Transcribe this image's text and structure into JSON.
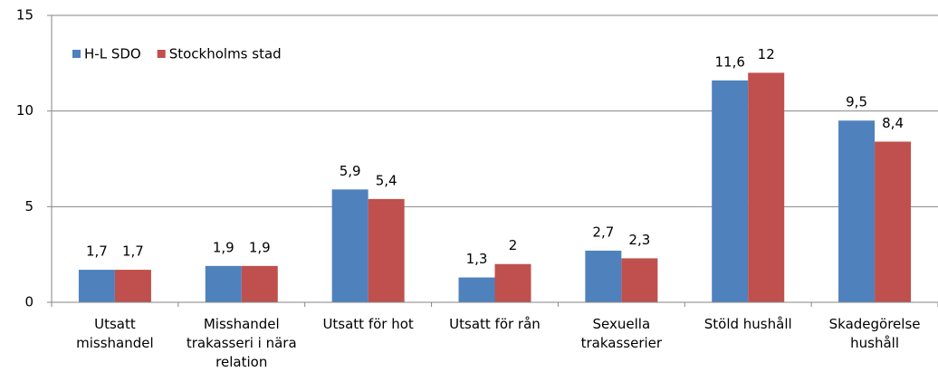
{
  "chart_data": {
    "type": "bar",
    "categories": [
      "Utsatt misshandel",
      "Misshandel trakasseri i nära relation",
      "Utsatt för hot",
      "Utsatt för rån",
      "Sexuella trakasserier",
      "Stöld hushåll",
      "Skadegörelse hushåll"
    ],
    "series": [
      {
        "name": "H-L SDO",
        "color": "#4f81bd",
        "values": [
          1.7,
          1.9,
          5.9,
          1.3,
          2.7,
          11.6,
          9.5
        ],
        "value_labels": [
          "1,7",
          "1,9",
          "5,9",
          "1,3",
          "2,7",
          "11,6",
          "9,5"
        ]
      },
      {
        "name": "Stockholms stad",
        "color": "#c0504d",
        "values": [
          1.7,
          1.9,
          5.4,
          2,
          2.3,
          12,
          8.4
        ],
        "value_labels": [
          "1,7",
          "1,9",
          "5,4",
          "2",
          "2,3",
          "12",
          "8,4"
        ]
      }
    ],
    "ylim": [
      0,
      15
    ],
    "yticks": [
      0,
      5,
      10,
      15
    ],
    "grid": true,
    "legend": "top-left"
  }
}
